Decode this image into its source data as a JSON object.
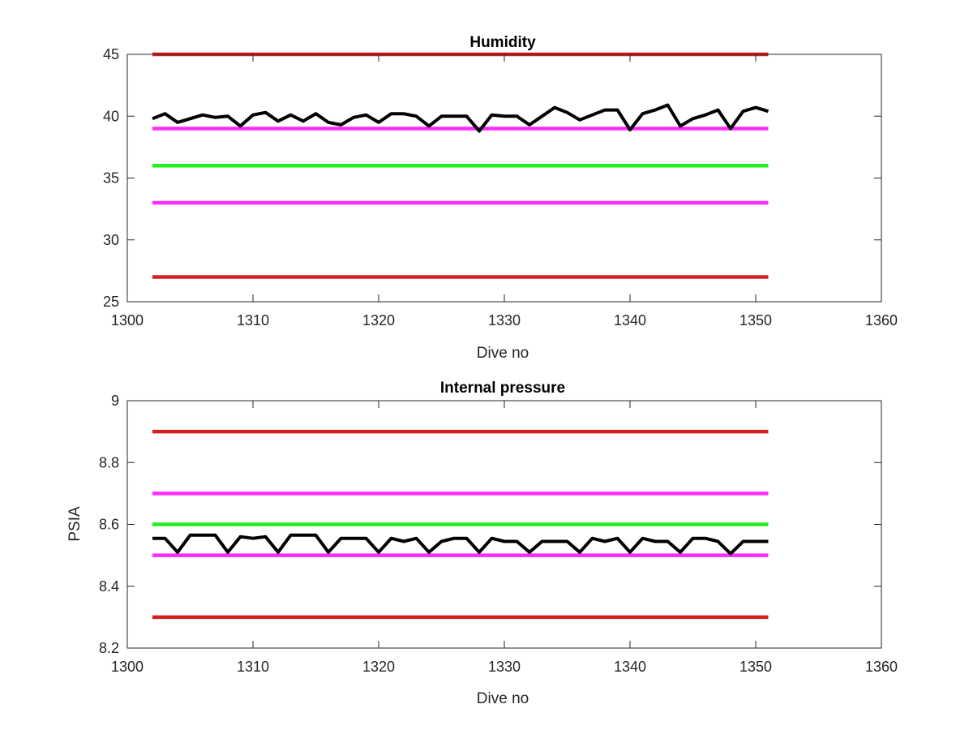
{
  "chart_data": [
    {
      "type": "line",
      "title": "Humidity",
      "xlabel": "Dive no",
      "ylabel": "",
      "xlim": [
        1300,
        1360
      ],
      "ylim": [
        25,
        45
      ],
      "xticks": [
        "1300",
        "1310",
        "1320",
        "1330",
        "1340",
        "1350",
        "1360"
      ],
      "yticks": [
        "25",
        "30",
        "35",
        "40",
        "45"
      ],
      "grid": false,
      "series": [
        {
          "color": "#d62020",
          "x": [
            1302,
            1351
          ],
          "values": [
            45,
            45
          ]
        },
        {
          "color": "#ff2bff",
          "x": [
            1302,
            1351
          ],
          "values": [
            39,
            39
          ]
        },
        {
          "color": "#22ee22",
          "x": [
            1302,
            1351
          ],
          "values": [
            36,
            36
          ]
        },
        {
          "color": "#ff2bff",
          "x": [
            1302,
            1351
          ],
          "values": [
            33,
            33
          ]
        },
        {
          "color": "#d62020",
          "x": [
            1302,
            1351
          ],
          "values": [
            27,
            27
          ]
        },
        {
          "color": "#000000",
          "x": [
            1302,
            1303,
            1304,
            1305,
            1306,
            1307,
            1308,
            1309,
            1310,
            1311,
            1312,
            1313,
            1314,
            1315,
            1316,
            1317,
            1318,
            1319,
            1320,
            1321,
            1322,
            1323,
            1324,
            1325,
            1326,
            1327,
            1328,
            1329,
            1330,
            1331,
            1332,
            1333,
            1334,
            1335,
            1336,
            1337,
            1338,
            1339,
            1340,
            1341,
            1342,
            1343,
            1344,
            1345,
            1346,
            1347,
            1348,
            1349,
            1350,
            1351
          ],
          "values": [
            39.8,
            40.2,
            39.5,
            39.8,
            40.1,
            39.9,
            40.0,
            39.2,
            40.1,
            40.3,
            39.6,
            40.1,
            39.6,
            40.2,
            39.5,
            39.3,
            39.9,
            40.1,
            39.5,
            40.2,
            40.2,
            40.0,
            39.2,
            40.0,
            40.0,
            40.0,
            38.8,
            40.1,
            40.0,
            40.0,
            39.3,
            40.0,
            40.7,
            40.3,
            39.7,
            40.1,
            40.5,
            40.5,
            38.9,
            40.2,
            40.5,
            40.9,
            39.2,
            39.8,
            40.1,
            40.5,
            39.0,
            40.4,
            40.7,
            40.4
          ]
        }
      ]
    },
    {
      "type": "line",
      "title": "Internal pressure",
      "xlabel": "Dive no",
      "ylabel": "PSIA",
      "xlim": [
        1300,
        1360
      ],
      "ylim": [
        8.2,
        9.0
      ],
      "xticks": [
        "1300",
        "1310",
        "1320",
        "1330",
        "1340",
        "1350",
        "1360"
      ],
      "yticks": [
        "8.2",
        "8.4",
        "8.6",
        "8.8",
        "9"
      ],
      "grid": false,
      "series": [
        {
          "color": "#d62020",
          "x": [
            1302,
            1351
          ],
          "values": [
            8.9,
            8.9
          ]
        },
        {
          "color": "#ff2bff",
          "x": [
            1302,
            1351
          ],
          "values": [
            8.7,
            8.7
          ]
        },
        {
          "color": "#22ee22",
          "x": [
            1302,
            1351
          ],
          "values": [
            8.6,
            8.6
          ]
        },
        {
          "color": "#ff2bff",
          "x": [
            1302,
            1351
          ],
          "values": [
            8.5,
            8.5
          ]
        },
        {
          "color": "#d62020",
          "x": [
            1302,
            1351
          ],
          "values": [
            8.3,
            8.3
          ]
        },
        {
          "color": "#000000",
          "x": [
            1302,
            1303,
            1304,
            1305,
            1306,
            1307,
            1308,
            1309,
            1310,
            1311,
            1312,
            1313,
            1314,
            1315,
            1316,
            1317,
            1318,
            1319,
            1320,
            1321,
            1322,
            1323,
            1324,
            1325,
            1326,
            1327,
            1328,
            1329,
            1330,
            1331,
            1332,
            1333,
            1334,
            1335,
            1336,
            1337,
            1338,
            1339,
            1340,
            1341,
            1342,
            1343,
            1344,
            1345,
            1346,
            1347,
            1348,
            1349,
            1350,
            1351
          ],
          "values": [
            8.555,
            8.555,
            8.51,
            8.565,
            8.565,
            8.565,
            8.51,
            8.56,
            8.555,
            8.56,
            8.51,
            8.565,
            8.565,
            8.565,
            8.51,
            8.555,
            8.555,
            8.555,
            8.51,
            8.555,
            8.545,
            8.555,
            8.51,
            8.545,
            8.555,
            8.555,
            8.51,
            8.555,
            8.545,
            8.545,
            8.51,
            8.545,
            8.545,
            8.545,
            8.51,
            8.555,
            8.545,
            8.555,
            8.51,
            8.555,
            8.545,
            8.545,
            8.51,
            8.555,
            8.555,
            8.545,
            8.505,
            8.545,
            8.545,
            8.545
          ]
        }
      ]
    }
  ]
}
